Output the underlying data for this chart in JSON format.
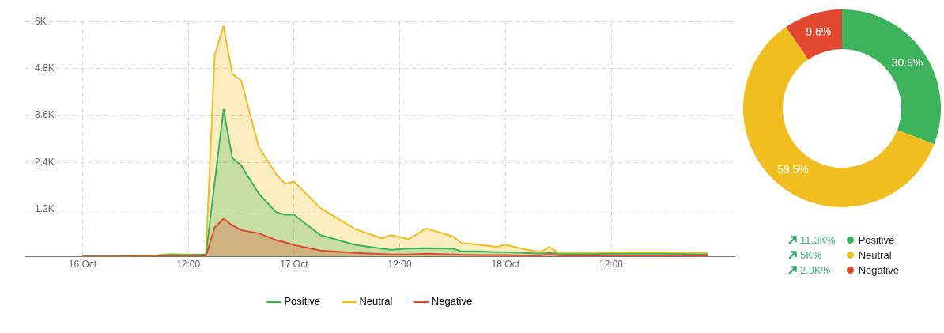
{
  "chart_data": [
    {
      "type": "area",
      "x": [
        "--10-16T00:00",
        "--10-16T04:00",
        "--10-16T08:00",
        "--10-16T10:00",
        "--10-16T12:00",
        "--10-16T13:00",
        "--10-16T14:00",
        "--10-16T15:00",
        "--10-16T16:00",
        "--10-16T17:00",
        "--10-16T18:00",
        "--10-16T20:00",
        "--10-16T22:00",
        "--10-16T23:00",
        "--10-17T00:00",
        "--10-17T03:00",
        "--10-17T07:00",
        "--10-17T10:00",
        "--10-17T11:00",
        "--10-17T13:00",
        "--10-17T15:00",
        "--10-17T18:00",
        "--10-17T19:00",
        "--10-17T21:00",
        "--10-17T23:00",
        "--10-18T00:00",
        "--10-18T02:00",
        "--10-18T04:00",
        "--10-18T05:00",
        "--10-18T06:00",
        "--10-18T10:00",
        "--10-18T14:00",
        "--10-18T18:00",
        "--10-18T23:00"
      ],
      "series": [
        {
          "name": "Positive",
          "color": "#3cb35a",
          "values": [
            10,
            10,
            20,
            50,
            40,
            50,
            50,
            1900,
            3750,
            2520,
            2330,
            1610,
            1130,
            1070,
            1070,
            550,
            300,
            210,
            180,
            210,
            220,
            210,
            140,
            140,
            120,
            120,
            100,
            80,
            120,
            70,
            70,
            80,
            80,
            60
          ]
        },
        {
          "name": "Neutral",
          "color": "#f0be1e",
          "values": [
            10,
            10,
            30,
            70,
            50,
            60,
            60,
            5150,
            5880,
            4660,
            4500,
            2800,
            2100,
            1860,
            1920,
            1240,
            700,
            470,
            550,
            450,
            720,
            520,
            350,
            310,
            250,
            310,
            200,
            120,
            250,
            100,
            100,
            120,
            120,
            100
          ]
        },
        {
          "name": "Negative",
          "color": "#e0492f",
          "values": [
            5,
            5,
            10,
            15,
            15,
            15,
            20,
            750,
            970,
            800,
            680,
            600,
            420,
            370,
            300,
            160,
            100,
            70,
            60,
            60,
            80,
            60,
            50,
            40,
            40,
            40,
            30,
            30,
            80,
            30,
            30,
            30,
            30,
            30
          ]
        }
      ],
      "xlim": [
        "--10-15T17:30",
        "--10-19T02:00"
      ],
      "xticks": [
        {
          "value": "--10-16T00:00",
          "label": "16 Oct"
        },
        {
          "value": "--10-16T12:00",
          "label": "12:00"
        },
        {
          "value": "--10-17T00:00",
          "label": "17 Oct"
        },
        {
          "value": "--10-17T12:00",
          "label": "12:00"
        },
        {
          "value": "--10-18T00:00",
          "label": "18 Oct"
        },
        {
          "value": "--10-18T12:00",
          "label": "12:00"
        }
      ],
      "ylim": [
        0,
        6000
      ],
      "yticks": [
        {
          "value": 1200,
          "label": "1.2K"
        },
        {
          "value": 2400,
          "label": "2.4K"
        },
        {
          "value": 3600,
          "label": "3.6K"
        },
        {
          "value": 4800,
          "label": "4.8K"
        },
        {
          "value": 6000,
          "label": "6K"
        }
      ],
      "grid": true,
      "legend": "bottom",
      "marker": "none",
      "line_style": "solid"
    },
    {
      "type": "donut",
      "categories": [
        "Positive",
        "Neutral",
        "Negative"
      ],
      "values": [
        30.9,
        59.5,
        9.6
      ],
      "colors": [
        "#3cb35a",
        "#f0be1e",
        "#e0492f"
      ],
      "value_labels": [
        "30.9%",
        "59.5%",
        "9.6%"
      ],
      "legend": "bottom",
      "annotations": [
        "11.3K%",
        "5K%",
        "2.9K%"
      ]
    }
  ]
}
